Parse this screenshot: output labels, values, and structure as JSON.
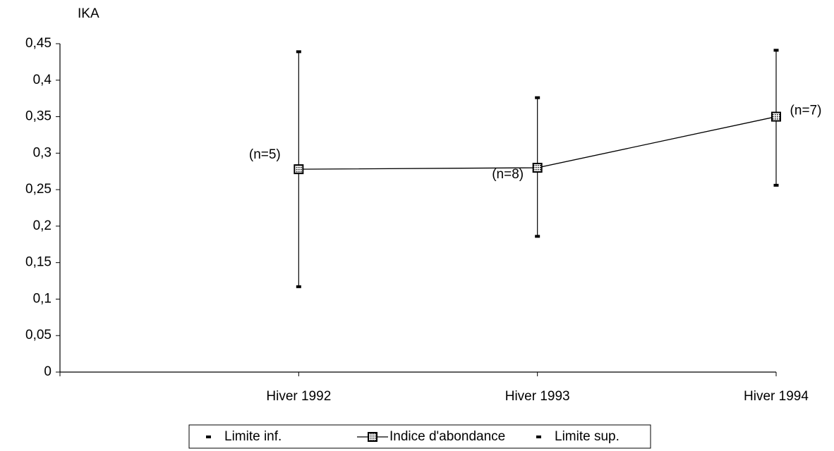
{
  "chart_data": {
    "type": "line",
    "y_label": "IKA",
    "categories": [
      null,
      "Hiver 1992",
      "Hiver 1993",
      "Hiver 1994"
    ],
    "series": [
      {
        "name": "Limite inf.",
        "color": "#000000",
        "marker": "dash",
        "line": false,
        "values": [
          null,
          0.117,
          0.186,
          0.256
        ]
      },
      {
        "name": "Indice d'abondance",
        "color": "#000000",
        "marker": "square",
        "line": true,
        "values": [
          null,
          0.278,
          0.28,
          0.35
        ]
      },
      {
        "name": "Limite sup.",
        "color": "#000000",
        "marker": "dash",
        "line": false,
        "values": [
          null,
          0.439,
          0.376,
          0.441
        ]
      }
    ],
    "high_low_lines": true,
    "annotations": [
      null,
      "(n=5)",
      "(n=8)",
      "(n=7)"
    ],
    "ylim": [
      0,
      0.45
    ],
    "yticks": [
      0,
      {
        "value": 0.05,
        "label": "0,05"
      },
      {
        "value": 0.1,
        "label": "0,1"
      },
      {
        "value": 0.15,
        "label": "0,15"
      },
      {
        "value": 0.2,
        "label": "0,2"
      },
      {
        "value": 0.25,
        "label": "0,25"
      },
      {
        "value": 0.3,
        "label": "0,3"
      },
      {
        "value": 0.35,
        "label": "0,35"
      },
      {
        "value": 0.4,
        "label": "0,4"
      },
      {
        "value": 0.45,
        "label": "0,45"
      }
    ],
    "grid": false,
    "legend": "bottom"
  }
}
